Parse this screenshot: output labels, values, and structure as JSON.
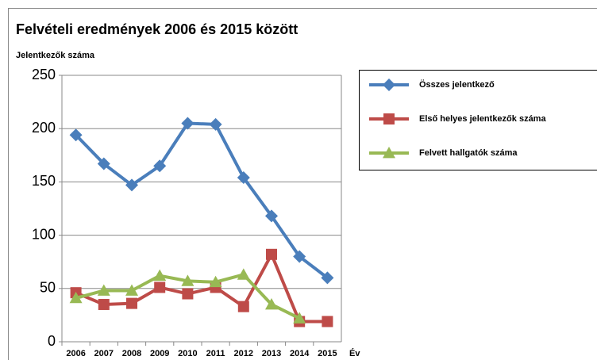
{
  "chart_data": {
    "type": "line",
    "title": "Felvételi eredmények 2006 és 2015 között",
    "ylabel": "Jelentkezők száma",
    "xlabel": "Év",
    "categories": [
      "2006",
      "2007",
      "2008",
      "2009",
      "2010",
      "2011",
      "2012",
      "2013",
      "2014",
      "2015"
    ],
    "series": [
      {
        "name": "Összes jelentkező",
        "color": "#4a7ebb",
        "marker": "diamond",
        "values": [
          194,
          167,
          147,
          165,
          205,
          204,
          154,
          118,
          80,
          60
        ]
      },
      {
        "name": "Első helyes jelentkezők száma",
        "color": "#be4b48",
        "marker": "square",
        "values": [
          46,
          35,
          36,
          51,
          45,
          51,
          33,
          82,
          19,
          19
        ]
      },
      {
        "name": "Felvett hallgatók  száma",
        "color": "#98b954",
        "marker": "triangle",
        "values": [
          41,
          48,
          48,
          62,
          57,
          56,
          63,
          35,
          22,
          null
        ]
      }
    ],
    "ylim": [
      0,
      250
    ],
    "yticks": [
      0,
      50,
      100,
      150,
      200,
      250
    ],
    "grid": true,
    "legend": "right"
  }
}
